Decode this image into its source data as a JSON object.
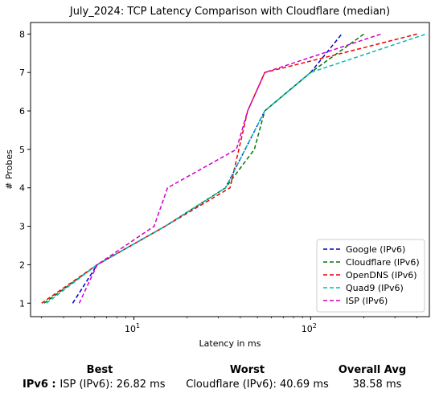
{
  "chart_data": {
    "type": "line",
    "title": "July_2024: TCP Latency Comparison with Cloudflare (median)",
    "xlabel": "Latency in ms",
    "ylabel": "# Probes",
    "xscale": "log",
    "xlim": [
      2.6,
      470
    ],
    "ylim": [
      0.65,
      8.3
    ],
    "yticks": [
      1,
      2,
      3,
      4,
      5,
      6,
      7,
      8
    ],
    "xticks": [
      {
        "value": 10,
        "base": "10",
        "exp": "1"
      },
      {
        "value": 100,
        "base": "10",
        "exp": "2"
      }
    ],
    "grid": false,
    "legend_position": "lower right",
    "series": [
      {
        "name": "Google (IPv6)",
        "color": "#0000cc",
        "x": [
          4.5,
          6.2,
          15,
          33,
          55,
          100,
          150
        ],
        "y": [
          1,
          2,
          3,
          4,
          6,
          7,
          8
        ]
      },
      {
        "name": "Cloudflare (IPv6)",
        "color": "#007700",
        "x": [
          3.1,
          6.2,
          15,
          33,
          48,
          55,
          100,
          200
        ],
        "y": [
          1,
          2,
          3,
          4,
          5,
          6,
          7,
          8
        ]
      },
      {
        "name": "OpenDNS (IPv6)",
        "color": "#ee0000",
        "x": [
          3.0,
          6.2,
          15,
          35,
          44,
          55,
          150,
          400
        ],
        "y": [
          1,
          2,
          3,
          4,
          6,
          7,
          7.5,
          8
        ]
      },
      {
        "name": "Quad9 (IPv6)",
        "color": "#00bbbb",
        "x": [
          3.2,
          6.2,
          15,
          33,
          55,
          100,
          450
        ],
        "y": [
          1,
          2,
          3,
          4,
          6,
          7,
          8
        ]
      },
      {
        "name": "ISP (IPv6)",
        "color": "#cc00cc",
        "x": [
          4.9,
          6.2,
          13,
          15.5,
          38,
          44,
          55,
          250
        ],
        "y": [
          1,
          2,
          3,
          4,
          5,
          6,
          7,
          8
        ]
      }
    ]
  },
  "summary": {
    "best_header": "Best",
    "worst_header": "Worst",
    "avg_header": "Overall Avg",
    "row_label": "IPv6 :",
    "best_value": "ISP (IPv6): 26.82 ms",
    "worst_value": "Cloudflare (IPv6): 40.69 ms",
    "avg_value": "38.58 ms"
  }
}
